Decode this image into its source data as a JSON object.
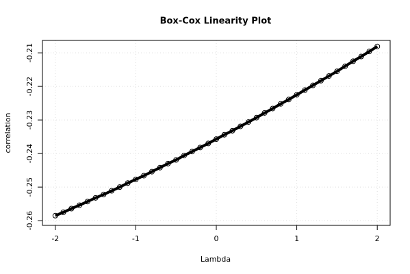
{
  "chart_data": {
    "type": "scatter",
    "title": "Box-Cox Linearity Plot",
    "x_label": "Lambda",
    "y_label": "correlation",
    "x": [
      -2.0,
      -1.9,
      -1.8,
      -1.7,
      -1.6,
      -1.5,
      -1.4,
      -1.3,
      -1.2,
      -1.1,
      -1.0,
      -0.9,
      -0.8,
      -0.7,
      -0.6,
      -0.5,
      -0.4,
      -0.3,
      -0.2,
      -0.1,
      0.0,
      0.1,
      0.2,
      0.3,
      0.4,
      0.5,
      0.6,
      0.7,
      0.8,
      0.9,
      1.0,
      1.1,
      1.2,
      1.3,
      1.4,
      1.5,
      1.6,
      1.7,
      1.8,
      1.9,
      2.0
    ],
    "values": [
      -0.2585,
      -0.2575,
      -0.2564,
      -0.2554,
      -0.2543,
      -0.2532,
      -0.2522,
      -0.2511,
      -0.25,
      -0.2488,
      -0.2477,
      -0.2466,
      -0.2454,
      -0.2442,
      -0.243,
      -0.2419,
      -0.2406,
      -0.2394,
      -0.2382,
      -0.237,
      -0.2357,
      -0.2344,
      -0.2332,
      -0.2319,
      -0.2306,
      -0.2293,
      -0.2279,
      -0.2266,
      -0.2252,
      -0.2239,
      -0.2225,
      -0.2211,
      -0.2197,
      -0.2183,
      -0.2169,
      -0.2155,
      -0.214,
      -0.2125,
      -0.2111,
      -0.2096,
      -0.2081
    ],
    "color": "#000000",
    "xlim": [
      -2.16,
      2.16
    ],
    "xticks": [
      -2,
      -1,
      0,
      1,
      2
    ],
    "ylim": [
      -0.2614,
      -0.2063
    ],
    "yticks": [
      -0.26,
      -0.25,
      -0.24,
      -0.23,
      -0.22,
      -0.21
    ],
    "grid": true
  }
}
